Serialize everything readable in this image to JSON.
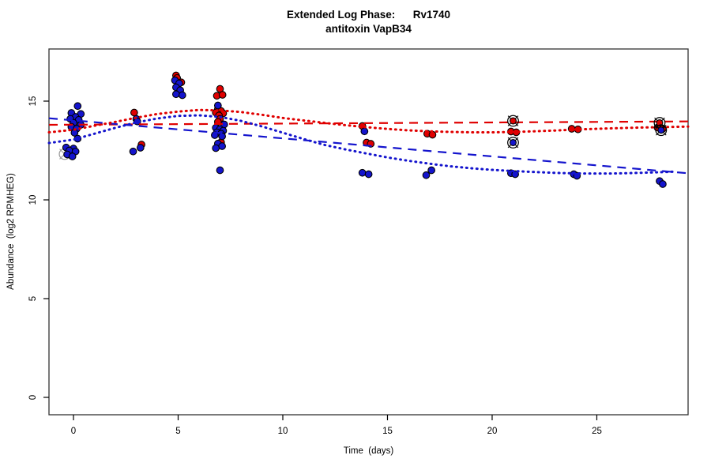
{
  "title": {
    "line1": "Extended Log Phase:      Rv1740",
    "line2": "antitoxin VapB34"
  },
  "chart_data": {
    "type": "scatter",
    "xlabel": "Time  (days)",
    "ylabel": "Abundance  (log2 RPMHEG)",
    "xlim": [
      -1.17,
      29.36
    ],
    "ylim": [
      -0.88,
      17.64
    ],
    "x_ticks": [
      0,
      5,
      10,
      15,
      20,
      25
    ],
    "y_ticks": [
      0,
      5,
      10,
      15
    ],
    "grid": false,
    "legend": "none",
    "colors": {
      "red": "#e00000",
      "blue": "#1414cd",
      "gray": "#999999",
      "axis": "#000000"
    },
    "series": [
      {
        "name": "gray-circled-outlier",
        "color": "#999999",
        "marker": "circle-x-open",
        "points": [
          [
            -0.42,
            12.32
          ]
        ]
      },
      {
        "name": "red-points",
        "color": "#e00000",
        "marker": "dot",
        "points": [
          [
            2.9,
            14.42
          ],
          [
            3.25,
            12.8
          ],
          [
            4.9,
            16.3
          ],
          [
            4.95,
            16.17
          ],
          [
            5.15,
            15.95
          ],
          [
            7.0,
            15.62
          ],
          [
            6.85,
            15.27
          ],
          [
            7.12,
            15.32
          ],
          [
            6.9,
            14.6
          ],
          [
            7.05,
            14.5
          ],
          [
            6.8,
            14.42
          ],
          [
            7.15,
            14.38
          ],
          [
            6.95,
            14.27
          ],
          [
            7.0,
            14.1
          ],
          [
            6.9,
            13.95
          ],
          [
            7.05,
            12.92
          ],
          [
            13.8,
            13.74
          ],
          [
            14.0,
            12.9
          ],
          [
            14.2,
            12.84
          ],
          [
            16.9,
            13.35
          ],
          [
            17.15,
            13.3
          ],
          [
            20.9,
            13.46
          ],
          [
            21.15,
            13.42
          ],
          [
            23.8,
            13.6
          ],
          [
            24.1,
            13.57
          ],
          [
            27.9,
            13.66
          ],
          [
            28.15,
            13.6
          ]
        ]
      },
      {
        "name": "blue-points",
        "color": "#1414cd",
        "marker": "dot",
        "points": [
          [
            0.2,
            14.75
          ],
          [
            -0.1,
            14.4
          ],
          [
            0.35,
            14.35
          ],
          [
            0.1,
            14.2
          ],
          [
            -0.15,
            14.1
          ],
          [
            0.25,
            14.05
          ],
          [
            0.0,
            13.9
          ],
          [
            0.35,
            13.8
          ],
          [
            -0.1,
            13.7
          ],
          [
            0.15,
            13.6
          ],
          [
            0.05,
            13.4
          ],
          [
            0.2,
            13.1
          ],
          [
            -0.35,
            12.65
          ],
          [
            0.0,
            12.6
          ],
          [
            -0.2,
            12.5
          ],
          [
            0.1,
            12.45
          ],
          [
            -0.3,
            12.3
          ],
          [
            -0.05,
            12.2
          ],
          [
            3.0,
            14.1
          ],
          [
            3.05,
            13.97
          ],
          [
            3.2,
            12.64
          ],
          [
            2.85,
            12.45
          ],
          [
            4.85,
            16.05
          ],
          [
            5.05,
            15.9
          ],
          [
            4.9,
            15.7
          ],
          [
            5.1,
            15.55
          ],
          [
            4.9,
            15.35
          ],
          [
            5.2,
            15.3
          ],
          [
            6.9,
            14.78
          ],
          [
            7.2,
            13.82
          ],
          [
            6.8,
            13.65
          ],
          [
            7.0,
            13.58
          ],
          [
            7.15,
            13.5
          ],
          [
            6.85,
            13.42
          ],
          [
            7.05,
            13.35
          ],
          [
            6.75,
            13.28
          ],
          [
            7.1,
            13.22
          ],
          [
            6.9,
            12.85
          ],
          [
            7.1,
            12.72
          ],
          [
            6.8,
            12.62
          ],
          [
            7.0,
            11.5
          ],
          [
            13.9,
            13.47
          ],
          [
            13.8,
            11.37
          ],
          [
            14.1,
            11.3
          ],
          [
            17.1,
            11.5
          ],
          [
            16.85,
            11.25
          ],
          [
            20.9,
            11.35
          ],
          [
            21.1,
            11.3
          ],
          [
            23.9,
            11.3
          ],
          [
            24.05,
            11.22
          ],
          [
            28.0,
            10.95
          ],
          [
            28.15,
            10.8
          ]
        ]
      },
      {
        "name": "red-circled-points",
        "color": "#e00000",
        "marker": "circle-x",
        "points": [
          [
            21.0,
            14.0
          ],
          [
            28.0,
            13.9
          ]
        ]
      },
      {
        "name": "blue-circled-points",
        "color": "#1414cd",
        "marker": "circle-x",
        "points": [
          [
            21.0,
            12.9
          ],
          [
            28.07,
            13.53
          ]
        ]
      }
    ],
    "lines": [
      {
        "name": "red-linear-fit",
        "color": "#e00000",
        "style": "dashed",
        "points": [
          [
            -1.17,
            13.8
          ],
          [
            29.36,
            13.97
          ]
        ]
      },
      {
        "name": "blue-linear-fit",
        "color": "#1414cd",
        "style": "dashed",
        "points": [
          [
            -1.17,
            14.13
          ],
          [
            29.36,
            11.35
          ]
        ]
      },
      {
        "name": "red-loess-fit",
        "color": "#e00000",
        "style": "dotted",
        "points": [
          [
            -1.17,
            13.42
          ],
          [
            0,
            13.55
          ],
          [
            1,
            13.75
          ],
          [
            2,
            13.95
          ],
          [
            3,
            14.16
          ],
          [
            4,
            14.35
          ],
          [
            5,
            14.47
          ],
          [
            6,
            14.55
          ],
          [
            7,
            14.53
          ],
          [
            8,
            14.45
          ],
          [
            9,
            14.31
          ],
          [
            10,
            14.15
          ],
          [
            11,
            14.02
          ],
          [
            12,
            13.9
          ],
          [
            13,
            13.78
          ],
          [
            14,
            13.68
          ],
          [
            15,
            13.59
          ],
          [
            16,
            13.52
          ],
          [
            17,
            13.47
          ],
          [
            18,
            13.44
          ],
          [
            19,
            13.42
          ],
          [
            20,
            13.42
          ],
          [
            21,
            13.44
          ],
          [
            22,
            13.47
          ],
          [
            23,
            13.51
          ],
          [
            24,
            13.56
          ],
          [
            25,
            13.6
          ],
          [
            26,
            13.63
          ],
          [
            27,
            13.66
          ],
          [
            28,
            13.68
          ],
          [
            29.36,
            13.71
          ]
        ]
      },
      {
        "name": "blue-loess-fit",
        "color": "#1414cd",
        "style": "dotted",
        "points": [
          [
            -1.17,
            12.88
          ],
          [
            0,
            13.05
          ],
          [
            1,
            13.35
          ],
          [
            2,
            13.65
          ],
          [
            3,
            13.92
          ],
          [
            4,
            14.12
          ],
          [
            5,
            14.25
          ],
          [
            6,
            14.28
          ],
          [
            7,
            14.2
          ],
          [
            8,
            14.0
          ],
          [
            9,
            13.72
          ],
          [
            10,
            13.4
          ],
          [
            11,
            13.08
          ],
          [
            12,
            12.78
          ],
          [
            13,
            12.55
          ],
          [
            14,
            12.35
          ],
          [
            15,
            12.15
          ],
          [
            16,
            11.98
          ],
          [
            17,
            11.83
          ],
          [
            18,
            11.7
          ],
          [
            19,
            11.6
          ],
          [
            20,
            11.52
          ],
          [
            21,
            11.46
          ],
          [
            22,
            11.41
          ],
          [
            23,
            11.37
          ],
          [
            24,
            11.34
          ],
          [
            25,
            11.33
          ],
          [
            26,
            11.34
          ],
          [
            27,
            11.37
          ],
          [
            28,
            11.4
          ],
          [
            28.8,
            11.43
          ]
        ]
      }
    ]
  }
}
